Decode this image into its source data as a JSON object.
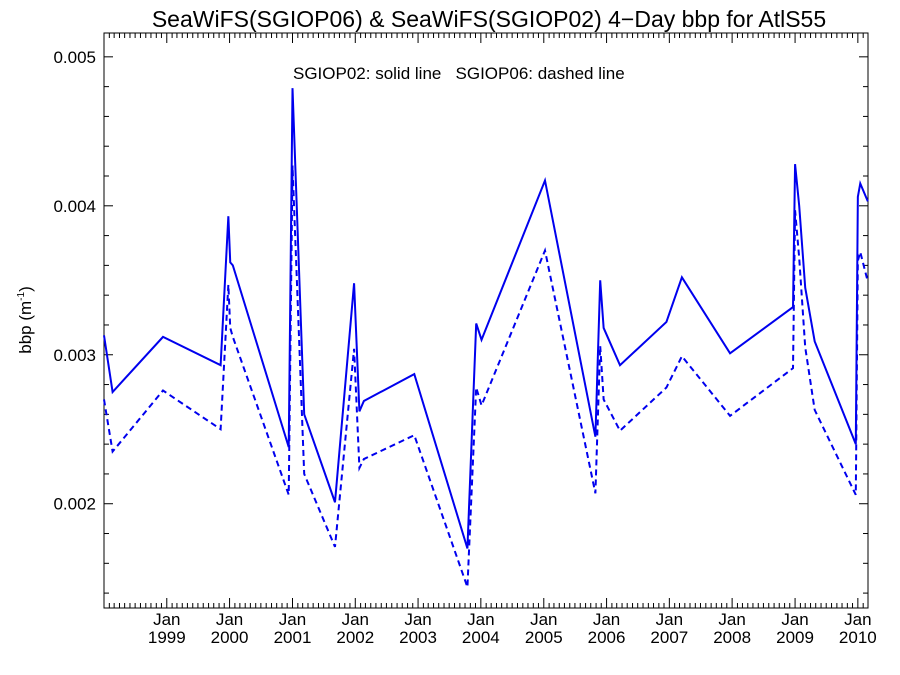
{
  "chart_data": {
    "type": "line",
    "title": "SeaWiFS(SGIOP06) & SeaWiFS(SGIOP02) 4−Day bbp for AtlS55",
    "ylabel_text": "bbp (m",
    "ylabel_sup": "-1",
    "ylabel_close": ")",
    "annotation": "SGIOP02: solid line   SGIOP06: dashed line",
    "xlim": [
      "1998-01-01",
      "2010-03-01"
    ],
    "ylim": [
      0.0013,
      0.00516
    ],
    "yticks": [
      {
        "value": 0.002,
        "label": "0.002"
      },
      {
        "value": 0.003,
        "label": "0.003"
      },
      {
        "value": 0.004,
        "label": "0.004"
      },
      {
        "value": 0.005,
        "label": "0.005"
      }
    ],
    "xticks": [
      {
        "date": "1999-01-01",
        "month": "Jan",
        "year": "1999"
      },
      {
        "date": "2000-01-01",
        "month": "Jan",
        "year": "2000"
      },
      {
        "date": "2001-01-01",
        "month": "Jan",
        "year": "2001"
      },
      {
        "date": "2002-01-01",
        "month": "Jan",
        "year": "2002"
      },
      {
        "date": "2003-01-01",
        "month": "Jan",
        "year": "2003"
      },
      {
        "date": "2004-01-01",
        "month": "Jan",
        "year": "2004"
      },
      {
        "date": "2005-01-01",
        "month": "Jan",
        "year": "2005"
      },
      {
        "date": "2006-01-01",
        "month": "Jan",
        "year": "2006"
      },
      {
        "date": "2007-01-01",
        "month": "Jan",
        "year": "2007"
      },
      {
        "date": "2008-01-01",
        "month": "Jan",
        "year": "2008"
      },
      {
        "date": "2009-01-01",
        "month": "Jan",
        "year": "2009"
      },
      {
        "date": "2010-01-01",
        "month": "Jan",
        "year": "2010"
      }
    ],
    "series": [
      {
        "name": "SGIOP02",
        "style": "solid",
        "color": "#0000ee",
        "x": [
          "1998-01-01",
          "1998-02-20",
          "1998-12-10",
          "1999-11-10",
          "1999-12-25",
          "2000-01-05",
          "2000-01-20",
          "2000-12-10",
          "2001-01-01",
          "2001-03-10",
          "2001-09-05",
          "2001-12-25",
          "2002-01-25",
          "2002-02-20",
          "2002-12-10",
          "2003-10-15",
          "2003-12-05",
          "2004-01-05",
          "2005-01-08",
          "2005-10-28",
          "2005-11-25",
          "2005-12-15",
          "2006-03-20",
          "2006-12-15",
          "2007-03-15",
          "2007-12-20",
          "2008-12-20",
          "2009-01-01",
          "2009-01-25",
          "2009-03-01",
          "2009-04-25",
          "2009-12-20",
          "2010-01-01",
          "2010-01-15",
          "2010-02-28"
        ],
        "y": [
          0.00313,
          0.00275,
          0.00312,
          0.00293,
          0.00393,
          0.00362,
          0.0036,
          0.00238,
          0.00479,
          0.0026,
          0.00201,
          0.00348,
          0.00262,
          0.00269,
          0.00287,
          0.0017,
          0.00321,
          0.0031,
          0.00417,
          0.00245,
          0.0035,
          0.00318,
          0.00293,
          0.00322,
          0.00352,
          0.00301,
          0.00332,
          0.00428,
          0.004,
          0.00345,
          0.00309,
          0.0024,
          0.00406,
          0.00415,
          0.00403
        ]
      },
      {
        "name": "SGIOP06",
        "style": "dashed",
        "color": "#0000ee",
        "x": [
          "1998-01-01",
          "1998-02-20",
          "1998-12-10",
          "1999-11-10",
          "1999-12-25",
          "2000-01-05",
          "2000-01-20",
          "2000-12-10",
          "2001-01-01",
          "2001-03-10",
          "2001-09-05",
          "2001-12-25",
          "2002-01-25",
          "2002-02-20",
          "2002-12-10",
          "2003-10-15",
          "2003-12-05",
          "2004-01-05",
          "2005-01-08",
          "2005-10-28",
          "2005-11-25",
          "2005-12-15",
          "2006-03-20",
          "2006-12-15",
          "2007-03-15",
          "2007-12-20",
          "2008-12-20",
          "2009-01-01",
          "2009-01-25",
          "2009-03-01",
          "2009-04-25",
          "2009-12-20",
          "2010-01-01",
          "2010-01-15",
          "2010-02-28"
        ],
        "y": [
          0.0027,
          0.00235,
          0.00276,
          0.0025,
          0.00347,
          0.00318,
          0.00312,
          0.00206,
          0.00427,
          0.0022,
          0.00171,
          0.00304,
          0.00224,
          0.0023,
          0.00246,
          0.00144,
          0.00278,
          0.00266,
          0.0037,
          0.00207,
          0.00306,
          0.0027,
          0.00249,
          0.00278,
          0.00299,
          0.00259,
          0.00291,
          0.00397,
          0.00365,
          0.00305,
          0.00263,
          0.00206,
          0.00363,
          0.00369,
          0.00349
        ]
      }
    ],
    "grid": false,
    "legend": "none"
  }
}
